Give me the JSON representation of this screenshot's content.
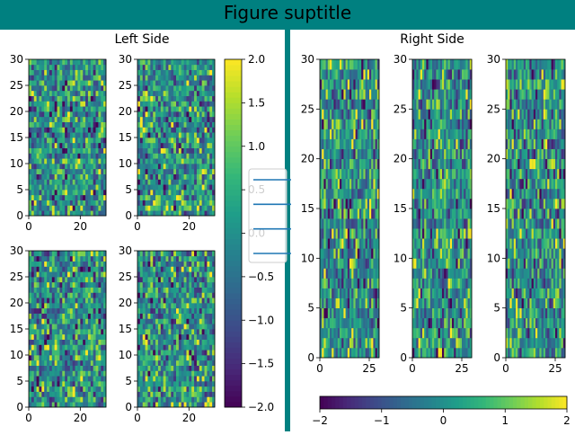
{
  "figure": {
    "suptitle": "Figure suptitle",
    "background_color": "#008080"
  },
  "chart_data": [
    {
      "type": "heatmap",
      "panel": "left",
      "subfigure_title": "Left Side",
      "subfigure_background": "#ffffff",
      "grid": false,
      "cmap": "viridis",
      "clim": [
        -2.0,
        2.0
      ],
      "xlim": [
        0,
        30
      ],
      "ylim": [
        0,
        30
      ],
      "xticks": [
        0,
        20
      ],
      "yticks": [
        0,
        5,
        10,
        15,
        20,
        25,
        30
      ],
      "layout": "2x2",
      "shape": [
        30,
        30
      ],
      "values": "random normal field, mean 0 (not individually readable)",
      "colorbar": {
        "orientation": "vertical",
        "ticks": [
          -2.0,
          -1.5,
          -1.0,
          -0.5,
          0.0,
          0.5,
          1.0,
          1.5,
          2.0
        ],
        "tick_labels": [
          "−2.0",
          "−1.5",
          "−1.0",
          "−0.5",
          "0.0",
          "0.5",
          "1.0",
          "1.5",
          "2.0"
        ]
      },
      "legend": {
        "placement": "center-right",
        "entries": 4,
        "line_color": "#1f77b4"
      }
    },
    {
      "type": "heatmap",
      "panel": "right",
      "subfigure_title": "Right Side",
      "subfigure_background": "#ffffff",
      "grid": false,
      "cmap": "viridis",
      "clim": [
        -2,
        2
      ],
      "xlim": [
        0,
        30
      ],
      "ylim": [
        0,
        30
      ],
      "xticks": [
        0,
        25
      ],
      "yticks": [
        0,
        5,
        10,
        15,
        20,
        25,
        30
      ],
      "layout": "1x3",
      "shape": [
        30,
        30
      ],
      "values": "random normal field, mean 0 (not individually readable)",
      "colorbar": {
        "orientation": "horizontal",
        "ticks": [
          -2,
          -1,
          0,
          1,
          2
        ],
        "tick_labels": [
          "−2",
          "−1",
          "0",
          "1",
          "2"
        ]
      }
    }
  ]
}
